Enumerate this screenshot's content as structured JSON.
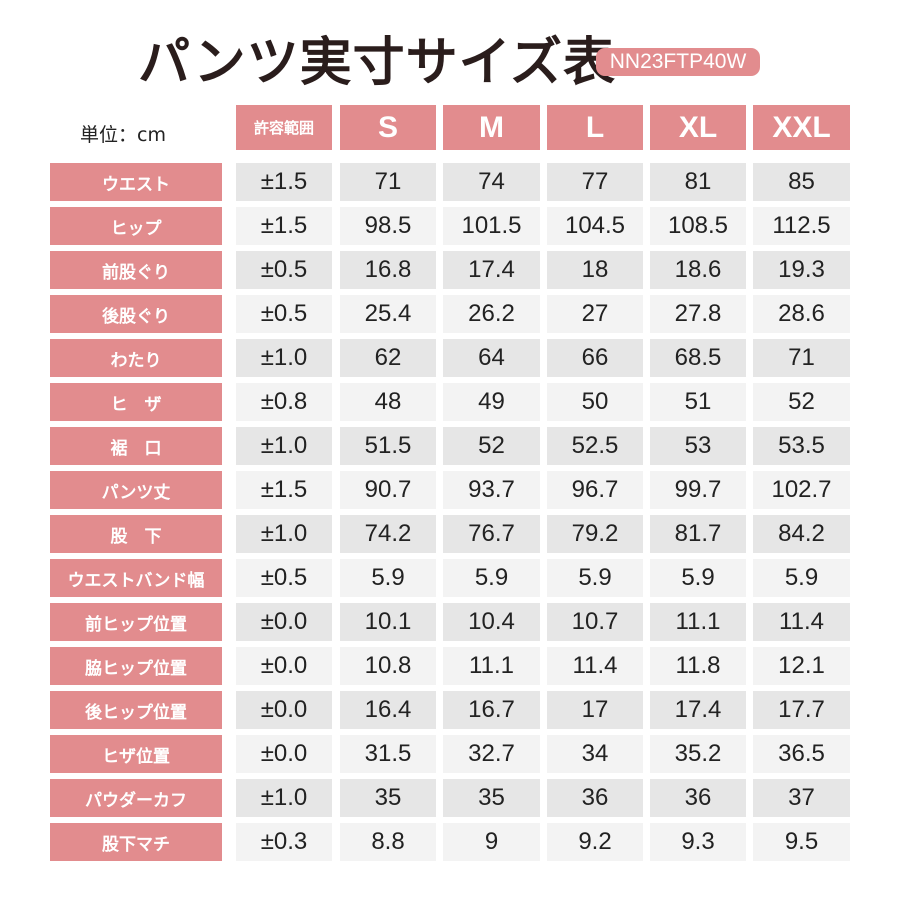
{
  "title": "パンツ実寸サイズ表",
  "model_code": "NN23FTP40W",
  "unit_label": "単位：cm",
  "colors": {
    "accent": "#e28c8e",
    "row_dark": "#e6e6e6",
    "row_light": "#f3f3f3",
    "title": "#2a1d1c"
  },
  "headers": [
    "許容範囲",
    "S",
    "M",
    "L",
    "XL",
    "XXL"
  ],
  "rows": [
    {
      "label": "ウエスト",
      "values": [
        "±1.5",
        "71",
        "74",
        "77",
        "81",
        "85"
      ]
    },
    {
      "label": "ヒップ",
      "values": [
        "±1.5",
        "98.5",
        "101.5",
        "104.5",
        "108.5",
        "112.5"
      ]
    },
    {
      "label": "前股ぐり",
      "values": [
        "±0.5",
        "16.8",
        "17.4",
        "18",
        "18.6",
        "19.3"
      ]
    },
    {
      "label": "後股ぐり",
      "values": [
        "±0.5",
        "25.4",
        "26.2",
        "27",
        "27.8",
        "28.6"
      ]
    },
    {
      "label": "わたり",
      "values": [
        "±1.0",
        "62",
        "64",
        "66",
        "68.5",
        "71"
      ]
    },
    {
      "label": "ヒ　ザ",
      "values": [
        "±0.8",
        "48",
        "49",
        "50",
        "51",
        "52"
      ]
    },
    {
      "label": "裾　口",
      "values": [
        "±1.0",
        "51.5",
        "52",
        "52.5",
        "53",
        "53.5"
      ]
    },
    {
      "label": "パンツ丈",
      "values": [
        "±1.5",
        "90.7",
        "93.7",
        "96.7",
        "99.7",
        "102.7"
      ]
    },
    {
      "label": "股　下",
      "values": [
        "±1.0",
        "74.2",
        "76.7",
        "79.2",
        "81.7",
        "84.2"
      ]
    },
    {
      "label": "ウエストバンド幅",
      "values": [
        "±0.5",
        "5.9",
        "5.9",
        "5.9",
        "5.9",
        "5.9"
      ]
    },
    {
      "label": "前ヒップ位置",
      "values": [
        "±0.0",
        "10.1",
        "10.4",
        "10.7",
        "11.1",
        "11.4"
      ]
    },
    {
      "label": "脇ヒップ位置",
      "values": [
        "±0.0",
        "10.8",
        "11.1",
        "11.4",
        "11.8",
        "12.1"
      ]
    },
    {
      "label": "後ヒップ位置",
      "values": [
        "±0.0",
        "16.4",
        "16.7",
        "17",
        "17.4",
        "17.7"
      ]
    },
    {
      "label": "ヒザ位置",
      "values": [
        "±0.0",
        "31.5",
        "32.7",
        "34",
        "35.2",
        "36.5"
      ]
    },
    {
      "label": "パウダーカフ",
      "values": [
        "±1.0",
        "35",
        "35",
        "36",
        "36",
        "37"
      ]
    },
    {
      "label": "股下マチ",
      "values": [
        "±0.3",
        "8.8",
        "9",
        "9.2",
        "9.3",
        "9.5"
      ]
    }
  ]
}
